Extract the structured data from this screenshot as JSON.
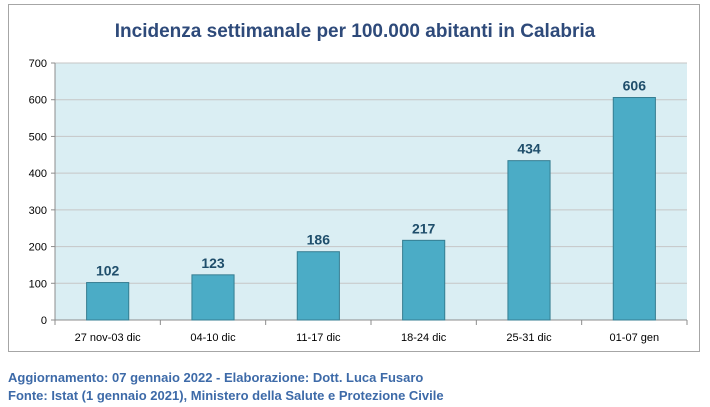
{
  "chart_data": {
    "type": "bar",
    "title": "Incidenza settimanale per 100.000 abitanti in Calabria",
    "categories": [
      "27 nov-03 dic",
      "04-10 dic",
      "11-17 dic",
      "18-24 dic",
      "25-31 dic",
      "01-07 gen"
    ],
    "values": [
      102,
      123,
      186,
      217,
      434,
      606
    ],
    "ylim": [
      0,
      700
    ],
    "yticks": [
      0,
      100,
      200,
      300,
      400,
      500,
      600,
      700
    ],
    "xlabel": "",
    "ylabel": "",
    "grid": true,
    "legend": "none",
    "colors": {
      "bar": "#4bacc6",
      "bar_border": "#357d91",
      "plot_background": "#daeef3",
      "grid": "#c6c6c6",
      "data_label": "#1f4e6b"
    }
  },
  "footer": {
    "line1": "Aggiornamento: 07 gennaio 2022 - Elaborazione: Dott. Luca Fusaro",
    "line2": "Fonte: Istat (1 gennaio 2021), Ministero della Salute e Protezione Civile"
  }
}
